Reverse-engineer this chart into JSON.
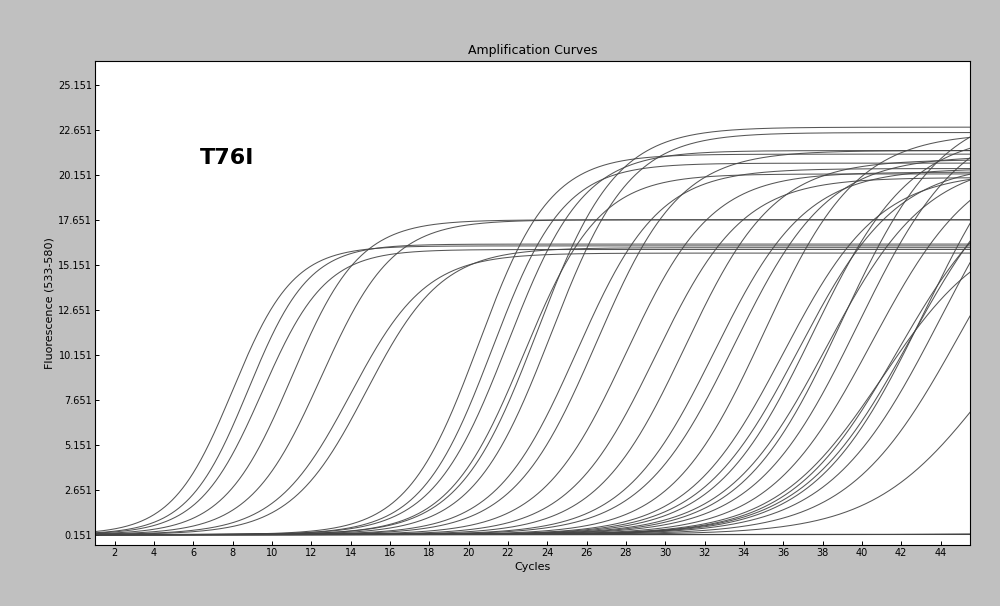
{
  "title": "Amplification Curves",
  "xlabel": "Cycles",
  "ylabel": "Fluorescence (533-580)",
  "annotation": "T76I",
  "xlim": [
    1,
    45.5
  ],
  "ylim": [
    -0.45,
    26.5
  ],
  "xticks": [
    2,
    4,
    6,
    8,
    10,
    12,
    14,
    16,
    18,
    20,
    22,
    24,
    26,
    28,
    30,
    32,
    34,
    36,
    38,
    40,
    42,
    44
  ],
  "yticks": [
    0.151,
    2.651,
    5.151,
    7.651,
    10.151,
    12.651,
    15.151,
    17.651,
    20.151,
    22.651,
    25.151
  ],
  "background_color": "#c0c0c0",
  "plot_bg_color": "#ffffff",
  "line_color": "#444444",
  "title_fontsize": 9,
  "label_fontsize": 8,
  "tick_fontsize": 7,
  "annotation_fontsize": 16,
  "curves": [
    {
      "midpoint": 8.0,
      "plateau": 16.2,
      "steepness": 0.65
    },
    {
      "midpoint": 8.8,
      "plateau": 16.3,
      "steepness": 0.65
    },
    {
      "midpoint": 9.5,
      "plateau": 16.0,
      "steepness": 0.62
    },
    {
      "midpoint": 11.0,
      "plateau": 17.65,
      "steepness": 0.58
    },
    {
      "midpoint": 12.5,
      "plateau": 17.65,
      "steepness": 0.55
    },
    {
      "midpoint": 14.0,
      "plateau": 15.8,
      "steepness": 0.52
    },
    {
      "midpoint": 14.8,
      "plateau": 16.1,
      "steepness": 0.52
    },
    {
      "midpoint": 20.5,
      "plateau": 21.3,
      "steepness": 0.55
    },
    {
      "midpoint": 21.2,
      "plateau": 20.8,
      "steepness": 0.55
    },
    {
      "midpoint": 22.0,
      "plateau": 21.5,
      "steepness": 0.52
    },
    {
      "midpoint": 22.8,
      "plateau": 20.2,
      "steepness": 0.52
    },
    {
      "midpoint": 23.5,
      "plateau": 22.8,
      "steepness": 0.5
    },
    {
      "midpoint": 24.2,
      "plateau": 22.5,
      "steepness": 0.5
    },
    {
      "midpoint": 25.5,
      "plateau": 20.5,
      "steepness": 0.48
    },
    {
      "midpoint": 26.5,
      "plateau": 21.5,
      "steepness": 0.47
    },
    {
      "midpoint": 28.0,
      "plateau": 20.3,
      "steepness": 0.46
    },
    {
      "midpoint": 29.5,
      "plateau": 20.0,
      "steepness": 0.45
    },
    {
      "midpoint": 31.0,
      "plateau": 21.0,
      "steepness": 0.44
    },
    {
      "midpoint": 32.5,
      "plateau": 20.5,
      "steepness": 0.43
    },
    {
      "midpoint": 33.5,
      "plateau": 21.2,
      "steepness": 0.42
    },
    {
      "midpoint": 35.0,
      "plateau": 22.5,
      "steepness": 0.42
    },
    {
      "midpoint": 36.0,
      "plateau": 20.3,
      "steepness": 0.41
    },
    {
      "midpoint": 36.8,
      "plateau": 20.8,
      "steepness": 0.4
    },
    {
      "midpoint": 37.5,
      "plateau": 22.5,
      "steepness": 0.4
    },
    {
      "midpoint": 38.2,
      "plateau": 21.0,
      "steepness": 0.39
    },
    {
      "midpoint": 39.0,
      "plateau": 24.0,
      "steepness": 0.39
    },
    {
      "midpoint": 39.8,
      "plateau": 23.5,
      "steepness": 0.38
    },
    {
      "midpoint": 40.5,
      "plateau": 21.5,
      "steepness": 0.38
    },
    {
      "midpoint": 41.0,
      "plateau": 17.5,
      "steepness": 0.37
    },
    {
      "midpoint": 41.8,
      "plateau": 20.5,
      "steepness": 0.37
    },
    {
      "midpoint": 42.5,
      "plateau": 22.0,
      "steepness": 0.36
    },
    {
      "midpoint": 43.2,
      "plateau": 25.0,
      "steepness": 0.36
    },
    {
      "midpoint": 44.0,
      "plateau": 24.2,
      "steepness": 0.35
    },
    {
      "midpoint": 45.0,
      "plateau": 22.5,
      "steepness": 0.35
    },
    {
      "midpoint": 46.5,
      "plateau": 16.5,
      "steepness": 0.34
    },
    {
      "midpoint": 50.0,
      "plateau": 0.25,
      "steepness": 0.3
    },
    {
      "midpoint": 51.0,
      "plateau": 0.25,
      "steepness": 0.3
    },
    {
      "midpoint": 52.0,
      "plateau": 0.25,
      "steepness": 0.3
    },
    {
      "midpoint": 53.0,
      "plateau": 0.25,
      "steepness": 0.3
    },
    {
      "midpoint": 54.0,
      "plateau": 0.25,
      "steepness": 0.3
    },
    {
      "midpoint": 55.0,
      "plateau": 0.25,
      "steepness": 0.3
    }
  ]
}
